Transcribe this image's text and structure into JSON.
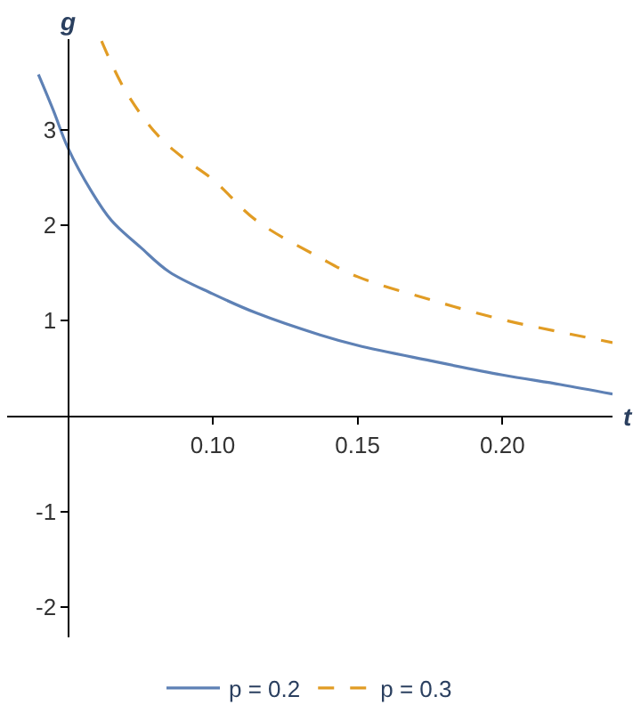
{
  "chart_data": {
    "type": "line",
    "xlabel": "t",
    "ylabel": "g",
    "xlim": [
      0.029,
      0.238
    ],
    "ylim": [
      -2.32,
      3.95
    ],
    "xticks": [
      {
        "value": 0.1,
        "label": "0.10"
      },
      {
        "value": 0.15,
        "label": "0.15"
      },
      {
        "value": 0.2,
        "label": "0.20"
      }
    ],
    "yticks": [
      -2,
      -1,
      1,
      2,
      3
    ],
    "legend": "bottom",
    "series": [
      {
        "name": "p = 0.2",
        "color": "#5e81b5",
        "line_style": "solid",
        "x": [
          0.0398,
          0.045,
          0.05,
          0.058,
          0.065,
          0.075,
          0.085,
          0.1,
          0.115,
          0.137,
          0.15,
          0.175,
          0.2,
          0.22,
          0.238
        ],
        "values": [
          3.58,
          3.2,
          2.81,
          2.36,
          2.05,
          1.77,
          1.51,
          1.28,
          1.08,
          0.85,
          0.74,
          0.58,
          0.43,
          0.33,
          0.23
        ]
      },
      {
        "name": "p = 0.3",
        "color": "#e19c24",
        "line_style": "dashed",
        "x": [
          0.0616,
          0.07,
          0.0808,
          0.09,
          0.1,
          0.115,
          0.137,
          0.15,
          0.175,
          0.2,
          0.22,
          0.238
        ],
        "values": [
          3.93,
          3.4,
          2.95,
          2.7,
          2.48,
          2.05,
          1.66,
          1.46,
          1.22,
          1.01,
          0.88,
          0.77
        ]
      }
    ]
  }
}
